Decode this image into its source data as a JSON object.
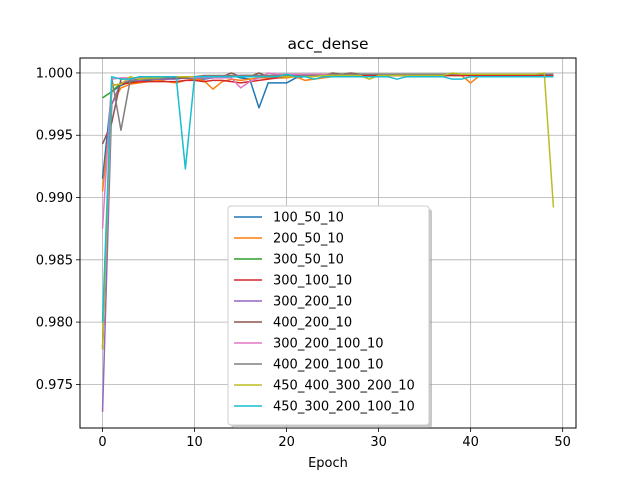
{
  "chart_data": {
    "type": "line",
    "title": "acc_dense",
    "xlabel": "Epoch",
    "ylabel": "",
    "xlim": [
      -2.45,
      51.45
    ],
    "ylim": [
      0.9715,
      1.0012
    ],
    "xticks": [
      0,
      10,
      20,
      30,
      40,
      50
    ],
    "yticks": [
      0.975,
      0.98,
      0.985,
      0.99,
      0.995,
      1.0
    ],
    "ytick_labels": [
      "0.975",
      "0.980",
      "0.985",
      "0.990",
      "0.995",
      "1.000"
    ],
    "grid": true,
    "legend": "center-bottom",
    "series": [
      {
        "name": "100_50_10",
        "color": "#1f77b4",
        "x": [
          0,
          1,
          2,
          3,
          4,
          5,
          6,
          7,
          8,
          9,
          10,
          11,
          12,
          13,
          14,
          15,
          16,
          17,
          18,
          19,
          20,
          21,
          22,
          23,
          24,
          25,
          26,
          27,
          28,
          29,
          30,
          31,
          32,
          33,
          34,
          35,
          36,
          37,
          38,
          39,
          40,
          41,
          42,
          43,
          44,
          45,
          46,
          47,
          48,
          49
        ],
        "y": [
          0.9915,
          0.9985,
          0.999,
          0.9993,
          0.9994,
          0.9994,
          0.9994,
          0.9995,
          0.9996,
          0.9996,
          0.9995,
          0.9995,
          0.9996,
          0.9997,
          0.9998,
          0.9996,
          0.9995,
          0.9972,
          0.9992,
          0.9992,
          0.9992,
          0.9996,
          0.9997,
          0.9998,
          0.9998,
          0.9998,
          0.9998,
          0.9998,
          0.9998,
          0.9998,
          0.9998,
          0.9998,
          0.9998,
          0.9998,
          0.9998,
          0.9998,
          0.9998,
          0.9998,
          0.9998,
          0.9998,
          0.9998,
          0.9998,
          0.9998,
          0.9998,
          0.9998,
          0.9998,
          0.9998,
          0.9998,
          0.9998,
          0.9998
        ]
      },
      {
        "name": "200_50_10",
        "color": "#ff7f0e",
        "x": [
          0,
          1,
          2,
          3,
          4,
          5,
          6,
          7,
          8,
          9,
          10,
          11,
          12,
          13,
          14,
          15,
          16,
          17,
          18,
          19,
          20,
          21,
          22,
          23,
          24,
          25,
          26,
          27,
          28,
          29,
          30,
          31,
          32,
          33,
          34,
          35,
          36,
          37,
          38,
          39,
          40,
          41,
          42,
          43,
          44,
          45,
          46,
          47,
          48,
          49
        ],
        "y": [
          0.9905,
          0.9975,
          0.9988,
          0.9991,
          0.9992,
          0.9993,
          0.9994,
          0.9993,
          0.9992,
          0.9994,
          0.9995,
          0.9994,
          0.9987,
          0.9993,
          0.9995,
          0.9994,
          0.9995,
          0.9996,
          0.9996,
          0.9996,
          0.9996,
          0.9997,
          0.9994,
          0.9995,
          0.9996,
          0.9997,
          0.9998,
          0.9998,
          0.9997,
          0.9998,
          0.9998,
          0.9998,
          0.9998,
          0.9998,
          0.9998,
          0.9998,
          0.9998,
          0.9998,
          0.9998,
          0.9998,
          0.9992,
          0.9998,
          0.9998,
          0.9998,
          0.9998,
          0.9998,
          0.9998,
          0.9998,
          0.9998,
          0.9998
        ]
      },
      {
        "name": "300_50_10",
        "color": "#2ca02c",
        "x": [
          0,
          1,
          2,
          3,
          4,
          5,
          6,
          7,
          8,
          9,
          10,
          11,
          12,
          13,
          14,
          15,
          16,
          17,
          18,
          19,
          20,
          21,
          22,
          23,
          24,
          25,
          26,
          27,
          28,
          29,
          30,
          31,
          32,
          33,
          34,
          35,
          36,
          37,
          38,
          39,
          40,
          41,
          42,
          43,
          44,
          45,
          46,
          47,
          48,
          49
        ],
        "y": [
          0.998,
          0.9985,
          0.9992,
          0.9993,
          0.9994,
          0.9995,
          0.9995,
          0.9995,
          0.9996,
          0.9996,
          0.9996,
          0.9997,
          0.9997,
          0.9997,
          0.9997,
          0.9998,
          0.9998,
          0.9998,
          0.9998,
          0.9998,
          0.9998,
          0.9999,
          0.9999,
          0.9999,
          0.9999,
          0.9999,
          0.9999,
          0.9999,
          0.9999,
          0.9999,
          0.9999,
          0.9999,
          0.9999,
          0.9999,
          0.9999,
          0.9999,
          0.9999,
          0.9999,
          0.9999,
          0.9999,
          0.9999,
          0.9999,
          0.9999,
          0.9999,
          0.9999,
          0.9999,
          0.9999,
          0.9999,
          0.9999,
          0.9999
        ]
      },
      {
        "name": "300_100_10",
        "color": "#d62728",
        "x": [
          0,
          1,
          2,
          3,
          4,
          5,
          6,
          7,
          8,
          9,
          10,
          11,
          12,
          13,
          14,
          15,
          16,
          17,
          18,
          19,
          20,
          21,
          22,
          23,
          24,
          25,
          26,
          27,
          28,
          29,
          30,
          31,
          32,
          33,
          34,
          35,
          36,
          37,
          38,
          39,
          40,
          41,
          42,
          43,
          44,
          45,
          46,
          47,
          48,
          49
        ],
        "y": [
          0.978,
          0.999,
          0.9991,
          0.9992,
          0.9993,
          0.9993,
          0.9993,
          0.9993,
          0.9993,
          0.9994,
          0.9994,
          0.9993,
          0.9994,
          0.9994,
          0.9993,
          0.9992,
          0.9993,
          0.9994,
          0.9995,
          0.9996,
          0.9997,
          0.9997,
          0.9998,
          0.9998,
          0.9998,
          0.9998,
          0.9998,
          0.9998,
          0.9998,
          0.9998,
          0.9998,
          0.9998,
          0.9998,
          0.9998,
          0.9998,
          0.9998,
          0.9998,
          0.9998,
          0.9998,
          0.9998,
          0.9998,
          0.9998,
          0.9998,
          0.9998,
          0.9998,
          0.9998,
          0.9998,
          0.9998,
          0.9998,
          0.9998
        ]
      },
      {
        "name": "300_200_10",
        "color": "#9467bd",
        "x": [
          0,
          1,
          2,
          3,
          4,
          5,
          6,
          7,
          8,
          9,
          10,
          11,
          12,
          13,
          14,
          15,
          16,
          17,
          18,
          19,
          20,
          21,
          22,
          23,
          24,
          25,
          26,
          27,
          28,
          29,
          30,
          31,
          32,
          33,
          34,
          35,
          36,
          37,
          38,
          39,
          40,
          41,
          42,
          43,
          44,
          45,
          46,
          47,
          48,
          49
        ],
        "y": [
          0.9728,
          0.9975,
          0.9992,
          0.9994,
          0.9994,
          0.9995,
          0.9995,
          0.9995,
          0.9995,
          0.9996,
          0.9996,
          0.9997,
          0.9997,
          0.9997,
          0.9997,
          0.9998,
          0.9998,
          0.9998,
          0.9998,
          0.9998,
          0.9998,
          0.9998,
          0.9998,
          0.9998,
          0.9999,
          0.9999,
          0.9999,
          0.9999,
          0.9999,
          0.9999,
          0.9999,
          0.9999,
          0.9999,
          0.9999,
          0.9999,
          0.9999,
          0.9999,
          0.9999,
          0.9999,
          0.9999,
          0.9999,
          0.9999,
          0.9999,
          0.9999,
          0.9999,
          0.9999,
          0.9999,
          0.9999,
          0.9999,
          0.9999
        ]
      },
      {
        "name": "400_200_10",
        "color": "#8c564b",
        "x": [
          0,
          1,
          2,
          3,
          4,
          5,
          6,
          7,
          8,
          9,
          10,
          11,
          12,
          13,
          14,
          15,
          16,
          17,
          18,
          19,
          20,
          21,
          22,
          23,
          24,
          25,
          26,
          27,
          28,
          29,
          30,
          31,
          32,
          33,
          34,
          35,
          36,
          37,
          38,
          39,
          40,
          41,
          42,
          43,
          44,
          45,
          46,
          47,
          48,
          49
        ],
        "y": [
          0.9943,
          0.996,
          0.9995,
          0.9996,
          0.9996,
          0.9996,
          0.9996,
          0.9996,
          0.9996,
          0.9996,
          0.9997,
          0.9997,
          0.9997,
          0.9997,
          1.0,
          0.9997,
          0.9997,
          1.0,
          0.9997,
          0.9997,
          0.9998,
          0.9998,
          0.9998,
          0.9998,
          0.9998,
          1.0,
          0.9999,
          1.0,
          0.9999,
          0.9999,
          0.9999,
          0.9999,
          0.9999,
          0.9999,
          0.9999,
          0.9999,
          0.9999,
          0.9999,
          0.9999,
          0.9999,
          0.9999,
          0.9999,
          0.9999,
          0.9999,
          0.9999,
          0.9999,
          0.9999,
          0.9999,
          0.9999,
          0.9999
        ]
      },
      {
        "name": "300_200_100_10",
        "color": "#e377c2",
        "x": [
          0,
          1,
          2,
          3,
          4,
          5,
          6,
          7,
          8,
          9,
          10,
          11,
          12,
          13,
          14,
          15,
          16,
          17,
          18,
          19,
          20,
          21,
          22,
          23,
          24,
          25,
          26,
          27,
          28,
          29,
          30,
          31,
          32,
          33,
          34,
          35,
          36,
          37,
          38,
          39,
          40,
          41,
          42,
          43,
          44,
          45,
          46,
          47,
          48,
          49
        ],
        "y": [
          0.9875,
          0.9995,
          0.9996,
          0.9996,
          0.9996,
          0.9997,
          0.9997,
          0.9997,
          0.9997,
          0.9997,
          0.9996,
          0.9996,
          0.9996,
          0.9996,
          0.9996,
          0.9988,
          0.9993,
          0.9996,
          1.0,
          0.9999,
          0.9999,
          0.9999,
          0.9999,
          0.9999,
          0.9999,
          0.9999,
          0.9999,
          0.9999,
          0.9999,
          0.9999,
          0.9999,
          0.9999,
          0.9999,
          0.9999,
          0.9999,
          0.9999,
          0.9999,
          0.9999,
          0.9999,
          0.9999,
          0.9999,
          0.9999,
          0.9999,
          0.9999,
          0.9999,
          0.9999,
          0.9999,
          0.9999,
          0.9999,
          0.9999
        ]
      },
      {
        "name": "400_200_100_10",
        "color": "#7f7f7f",
        "x": [
          0,
          1,
          2,
          3,
          4,
          5,
          6,
          7,
          8,
          9,
          10,
          11,
          12,
          13,
          14,
          15,
          16,
          17,
          18,
          19,
          20,
          21,
          22,
          23,
          24,
          25,
          26,
          27,
          28,
          29,
          30,
          31,
          32,
          33,
          34,
          35,
          36,
          37,
          38,
          39,
          40,
          41,
          42,
          43,
          44,
          45,
          46,
          47,
          48,
          49
        ],
        "y": [
          0.9778,
          0.9996,
          0.9954,
          0.9994,
          0.9995,
          0.9995,
          0.9996,
          0.9996,
          0.9997,
          0.9997,
          0.9997,
          0.9998,
          0.9998,
          0.9998,
          0.9998,
          0.9998,
          0.9998,
          0.9998,
          0.9998,
          0.9998,
          0.9998,
          0.9998,
          0.9998,
          0.9998,
          0.9998,
          0.9999,
          0.9999,
          0.9999,
          0.9999,
          0.9999,
          0.9999,
          0.9999,
          0.9999,
          0.9999,
          0.9999,
          0.9999,
          0.9999,
          0.9999,
          0.9999,
          0.9999,
          0.9999,
          0.9999,
          0.9999,
          0.9999,
          0.9999,
          0.9999,
          0.9999,
          0.9999,
          0.9999,
          0.9999
        ]
      },
      {
        "name": "450_400_300_200_10",
        "color": "#bcbd22",
        "x": [
          0,
          1,
          2,
          3,
          4,
          5,
          6,
          7,
          8,
          9,
          10,
          11,
          12,
          13,
          14,
          15,
          16,
          17,
          18,
          19,
          20,
          21,
          22,
          23,
          24,
          25,
          26,
          27,
          28,
          29,
          30,
          31,
          32,
          33,
          34,
          35,
          36,
          37,
          38,
          39,
          40,
          41,
          42,
          43,
          44,
          45,
          46,
          47,
          48,
          49
        ],
        "y": [
          0.9778,
          0.999,
          0.9991,
          0.9997,
          0.9995,
          0.9996,
          0.9996,
          0.9997,
          0.9997,
          0.9997,
          0.9997,
          0.9997,
          0.9997,
          0.9997,
          0.9997,
          0.9997,
          0.9997,
          0.9997,
          0.9997,
          0.9997,
          0.9997,
          0.9997,
          0.9997,
          0.9997,
          0.9998,
          0.9998,
          0.9998,
          0.9998,
          0.9998,
          0.9995,
          0.9998,
          0.9998,
          0.9998,
          0.9998,
          0.9998,
          0.9998,
          0.9998,
          0.9998,
          1.0,
          0.9999,
          0.9999,
          0.9999,
          0.9999,
          0.9999,
          0.9999,
          0.9999,
          0.9999,
          0.9999,
          1.0,
          0.9892
        ]
      },
      {
        "name": "450_300_200_100_10",
        "color": "#17becf",
        "x": [
          0,
          1,
          2,
          3,
          4,
          5,
          6,
          7,
          8,
          9,
          10,
          11,
          12,
          13,
          14,
          15,
          16,
          17,
          18,
          19,
          20,
          21,
          22,
          23,
          24,
          25,
          26,
          27,
          28,
          29,
          30,
          31,
          32,
          33,
          34,
          35,
          36,
          37,
          38,
          39,
          40,
          41,
          42,
          43,
          44,
          45,
          46,
          47,
          48,
          49
        ],
        "y": [
          0.98,
          0.9997,
          0.9995,
          0.9995,
          0.9997,
          0.9997,
          0.9997,
          0.9997,
          0.9997,
          0.9923,
          0.9997,
          0.9997,
          0.9997,
          0.9997,
          0.9997,
          0.9997,
          0.9997,
          0.9997,
          0.9997,
          0.9997,
          0.9999,
          0.9997,
          0.9997,
          0.9995,
          0.9997,
          0.9997,
          0.9997,
          0.9997,
          0.9997,
          0.9997,
          0.9997,
          0.9997,
          0.9995,
          0.9997,
          0.9997,
          0.9997,
          0.9997,
          0.9997,
          0.9995,
          0.9995,
          0.9997,
          0.9997,
          0.9997,
          0.9997,
          0.9997,
          0.9997,
          0.9997,
          0.9997,
          0.9997,
          0.9997
        ]
      }
    ]
  }
}
